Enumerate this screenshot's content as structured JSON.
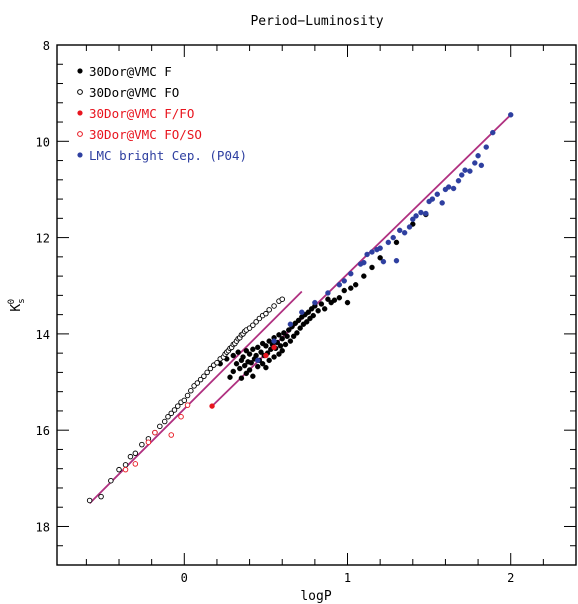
{
  "chart_data": {
    "type": "scatter",
    "title": "Period−Luminosity",
    "xlabel": "logP",
    "ylabel": "K",
    "ylabel_sub": "s",
    "ylabel_sup": "0",
    "xlim": [
      -0.78,
      2.4
    ],
    "ylim": [
      8,
      18.8
    ],
    "y_inverted": true,
    "grid": false,
    "legend_position": "top-left",
    "x_ticks": [
      0,
      1,
      2
    ],
    "y_ticks": [
      8,
      10,
      12,
      14,
      16,
      18
    ],
    "colors": {
      "f": "#000000",
      "fo": "#000000",
      "f_fo": "#e8141e",
      "fo_so": "#e8141e",
      "lmc": "#2e3fa0",
      "fit": "#b03080"
    },
    "series": [
      {
        "name": "30Dor@VMC F",
        "marker": "filled",
        "color": "#000000",
        "x": [
          0.22,
          0.26,
          0.28,
          0.3,
          0.3,
          0.32,
          0.33,
          0.34,
          0.35,
          0.35,
          0.36,
          0.37,
          0.38,
          0.38,
          0.39,
          0.4,
          0.4,
          0.41,
          0.42,
          0.42,
          0.43,
          0.44,
          0.45,
          0.45,
          0.46,
          0.47,
          0.48,
          0.48,
          0.49,
          0.5,
          0.5,
          0.51,
          0.52,
          0.52,
          0.53,
          0.54,
          0.55,
          0.55,
          0.56,
          0.57,
          0.58,
          0.58,
          0.59,
          0.6,
          0.6,
          0.61,
          0.62,
          0.63,
          0.64,
          0.65,
          0.66,
          0.67,
          0.68,
          0.69,
          0.7,
          0.71,
          0.72,
          0.73,
          0.74,
          0.75,
          0.76,
          0.77,
          0.78,
          0.79,
          0.8,
          0.82,
          0.84,
          0.86,
          0.88,
          0.9,
          0.92,
          0.95,
          0.98,
          1.0,
          1.02,
          1.05,
          1.1,
          1.15,
          1.2,
          1.3,
          1.4,
          1.48
        ],
        "y": [
          14.62,
          14.52,
          14.9,
          14.45,
          14.78,
          14.62,
          14.38,
          14.72,
          14.55,
          14.92,
          14.48,
          14.66,
          14.35,
          14.82,
          14.58,
          14.42,
          14.75,
          14.6,
          14.32,
          14.88,
          14.52,
          14.45,
          14.28,
          14.68,
          14.55,
          14.38,
          14.2,
          14.62,
          14.45,
          14.25,
          14.7,
          14.4,
          14.15,
          14.55,
          14.32,
          14.22,
          14.08,
          14.48,
          14.3,
          14.18,
          14.02,
          14.42,
          14.25,
          14.1,
          14.35,
          13.98,
          14.22,
          14.05,
          13.92,
          14.15,
          13.85,
          14.05,
          13.78,
          13.98,
          13.72,
          13.88,
          13.65,
          13.8,
          13.6,
          13.75,
          13.55,
          13.68,
          13.48,
          13.62,
          13.42,
          13.52,
          13.38,
          13.48,
          13.28,
          13.35,
          13.3,
          13.25,
          13.1,
          13.35,
          13.05,
          12.98,
          12.8,
          12.62,
          12.42,
          12.1,
          11.72,
          11.52
        ]
      },
      {
        "name": "30Dor@VMC FO",
        "marker": "open",
        "color": "#000000",
        "x": [
          -0.58,
          -0.51,
          -0.45,
          -0.4,
          -0.36,
          -0.33,
          -0.3,
          -0.26,
          -0.22,
          -0.18,
          -0.15,
          -0.12,
          -0.1,
          -0.08,
          -0.06,
          -0.04,
          -0.02,
          0.0,
          0.02,
          0.04,
          0.06,
          0.08,
          0.1,
          0.12,
          0.14,
          0.16,
          0.18,
          0.2,
          0.22,
          0.24,
          0.25,
          0.26,
          0.27,
          0.28,
          0.29,
          0.3,
          0.31,
          0.32,
          0.33,
          0.34,
          0.35,
          0.36,
          0.37,
          0.38,
          0.4,
          0.42,
          0.44,
          0.46,
          0.48,
          0.5,
          0.52,
          0.55,
          0.58,
          0.6
        ],
        "y": [
          17.46,
          17.38,
          17.05,
          16.82,
          16.72,
          16.55,
          16.48,
          16.3,
          16.18,
          16.05,
          15.92,
          15.82,
          15.72,
          15.65,
          15.58,
          15.5,
          15.42,
          15.38,
          15.28,
          15.18,
          15.08,
          15.02,
          14.95,
          14.88,
          14.8,
          14.72,
          14.65,
          14.6,
          14.52,
          14.48,
          14.42,
          14.38,
          14.35,
          14.3,
          14.28,
          14.22,
          14.2,
          14.15,
          14.1,
          14.08,
          14.02,
          14.0,
          13.95,
          13.92,
          13.88,
          13.82,
          13.75,
          13.68,
          13.62,
          13.58,
          13.5,
          13.42,
          13.32,
          13.28
        ]
      },
      {
        "name": "30Dor@VMC F/FO",
        "marker": "filled",
        "color": "#e8141e",
        "x": [
          0.17,
          0.5,
          0.55
        ],
        "y": [
          15.5,
          14.45,
          14.28
        ]
      },
      {
        "name": "30Dor@VMC FO/SO",
        "marker": "open",
        "color": "#e8141e",
        "x": [
          -0.36,
          -0.3,
          -0.22,
          -0.18,
          -0.08,
          -0.02,
          0.02
        ],
        "y": [
          16.82,
          16.7,
          16.25,
          16.05,
          16.1,
          15.72,
          15.48
        ]
      },
      {
        "name": "LMC bright Cep. (P04)",
        "marker": "filled",
        "color": "#2e3fa0",
        "x": [
          0.45,
          0.55,
          0.65,
          0.72,
          0.8,
          0.88,
          0.95,
          0.98,
          1.02,
          1.08,
          1.1,
          1.12,
          1.15,
          1.18,
          1.2,
          1.22,
          1.25,
          1.28,
          1.3,
          1.32,
          1.35,
          1.38,
          1.4,
          1.42,
          1.45,
          1.48,
          1.5,
          1.52,
          1.55,
          1.58,
          1.6,
          1.62,
          1.65,
          1.68,
          1.7,
          1.72,
          1.75,
          1.78,
          1.8,
          1.82,
          1.85,
          1.89,
          2.0
        ],
        "y": [
          14.55,
          14.15,
          13.8,
          13.55,
          13.35,
          13.15,
          12.98,
          12.9,
          12.75,
          12.55,
          12.52,
          12.35,
          12.3,
          12.25,
          12.22,
          12.5,
          12.1,
          12.0,
          12.48,
          11.85,
          11.9,
          11.78,
          11.62,
          11.55,
          11.48,
          11.5,
          11.25,
          11.2,
          11.1,
          11.28,
          11.0,
          10.95,
          10.98,
          10.82,
          10.7,
          10.6,
          10.62,
          10.45,
          10.3,
          10.5,
          10.12,
          9.82,
          9.45
        ]
      }
    ],
    "fit_lines": [
      {
        "x": [
          -0.58,
          0.72
        ],
        "y": [
          17.52,
          13.12
        ]
      },
      {
        "x": [
          0.17,
          2.0
        ],
        "y": [
          15.5,
          9.45
        ]
      }
    ]
  }
}
